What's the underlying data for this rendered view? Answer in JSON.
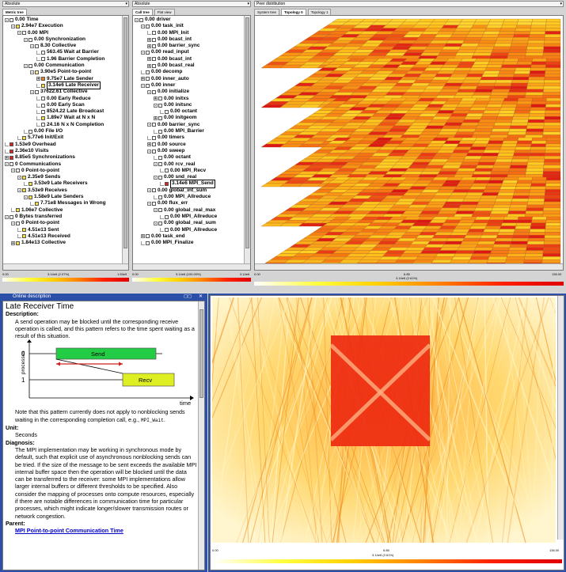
{
  "top": {
    "selectors": [
      "Absolute",
      "Absolute",
      "Peer distribution"
    ],
    "metric_tab": "Metric tree",
    "call_tabs": [
      "Call tree",
      "Flat view"
    ],
    "sys_tabs": [
      "System tree",
      "Topology 0",
      "Topology 1"
    ]
  },
  "metric_tree": [
    {
      "d": 0,
      "exp": "-",
      "c": "#ffffff",
      "t": "0.00 Time"
    },
    {
      "d": 1,
      "exp": "-",
      "c": "#f4e040",
      "t": "2.94e7 Execution"
    },
    {
      "d": 2,
      "exp": "-",
      "c": "#ffffff",
      "t": "0.00 MPI"
    },
    {
      "d": 3,
      "exp": "-",
      "c": "#ffffff",
      "t": "0.00 Synchronization"
    },
    {
      "d": 4,
      "exp": "-",
      "c": "#ffffff",
      "t": "8.30 Collective"
    },
    {
      "d": 5,
      "exp": "",
      "c": "#ffffff",
      "t": "563.45 Wait at Barrier"
    },
    {
      "d": 5,
      "exp": "",
      "c": "#ffffff",
      "t": "1.96 Barrier Completion"
    },
    {
      "d": 3,
      "exp": "-",
      "c": "#ffffff",
      "t": "0.00 Communication"
    },
    {
      "d": 4,
      "exp": "-",
      "c": "#f8f0a0",
      "t": "3.90e5 Point-to-point"
    },
    {
      "d": 5,
      "exp": "+",
      "c": "#f08020",
      "t": "9.75e7 Late Sender"
    },
    {
      "d": 5,
      "exp": "",
      "c": "#f4e040",
      "t": "3.14e6 Late Receiver",
      "boxed": true
    },
    {
      "d": 4,
      "exp": "-",
      "c": "#ffffff",
      "t": "37622.61 Collective"
    },
    {
      "d": 5,
      "exp": "",
      "c": "#ffffff",
      "t": "0.00 Early Reduce"
    },
    {
      "d": 5,
      "exp": "",
      "c": "#ffffff",
      "t": "0.00 Early Scan"
    },
    {
      "d": 5,
      "exp": "",
      "c": "#ffffff",
      "t": "8524.22 Late Broadcast"
    },
    {
      "d": 5,
      "exp": "",
      "c": "#f4e040",
      "t": "1.89e7 Wait at N x N"
    },
    {
      "d": 5,
      "exp": "",
      "c": "#ffffff",
      "t": "24.16 N x N Completion"
    },
    {
      "d": 3,
      "exp": "",
      "c": "#ffffff",
      "t": "0.00 File I/O"
    },
    {
      "d": 2,
      "exp": "",
      "c": "#f4e040",
      "t": "5.77e6 Init/Exit"
    },
    {
      "d": 0,
      "exp": "",
      "c": "#e02020",
      "t": "1.53e9 Overhead"
    },
    {
      "d": 0,
      "exp": "",
      "c": "#e02020",
      "t": "2.36e10 Visits"
    },
    {
      "d": 0,
      "exp": "+",
      "c": "#e02020",
      "t": "8.85e5 Synchronizations"
    },
    {
      "d": 0,
      "exp": "-",
      "c": "#ffffff",
      "t": "0 Communications"
    },
    {
      "d": 1,
      "exp": "-",
      "c": "#ffffff",
      "t": "0 Point-to-point"
    },
    {
      "d": 2,
      "exp": "-",
      "c": "#f4e040",
      "t": "2.35e9 Sends"
    },
    {
      "d": 3,
      "exp": "",
      "c": "#f4e040",
      "t": "3.53e9 Late Receivers"
    },
    {
      "d": 2,
      "exp": "-",
      "c": "#f4e040",
      "t": "3.53e9 Receives"
    },
    {
      "d": 3,
      "exp": "-",
      "c": "#f4e040",
      "t": "1.58e9 Late Senders"
    },
    {
      "d": 4,
      "exp": "",
      "c": "#f4e040",
      "t": "7.71e8 Messages in Wrong"
    },
    {
      "d": 1,
      "exp": "",
      "c": "#f4e040",
      "t": "1.06e7 Collective"
    },
    {
      "d": 0,
      "exp": "-",
      "c": "#ffffff",
      "t": "0 Bytes transferred"
    },
    {
      "d": 1,
      "exp": "-",
      "c": "#ffffff",
      "t": "0 Point-to-point"
    },
    {
      "d": 2,
      "exp": "",
      "c": "#f4e040",
      "t": "4.51e13 Sent"
    },
    {
      "d": 2,
      "exp": "",
      "c": "#f4e040",
      "t": "4.51e13 Received"
    },
    {
      "d": 1,
      "exp": "+",
      "c": "#f4e040",
      "t": "1.84e13 Collective"
    }
  ],
  "call_tree": [
    {
      "d": 0,
      "exp": "-",
      "c": "#ffffff",
      "t": "0.00 driver"
    },
    {
      "d": 1,
      "exp": "-",
      "c": "#ffffff",
      "t": "0.00 task_init"
    },
    {
      "d": 2,
      "exp": "",
      "c": "#ffffff",
      "t": "0.00 MPI_Init"
    },
    {
      "d": 2,
      "exp": "+",
      "c": "#ffffff",
      "t": "0.00 bcast_int"
    },
    {
      "d": 2,
      "exp": "+",
      "c": "#ffffff",
      "t": "0.00 barrier_sync"
    },
    {
      "d": 1,
      "exp": "-",
      "c": "#ffffff",
      "t": "0.00 read_input"
    },
    {
      "d": 2,
      "exp": "+",
      "c": "#ffffff",
      "t": "0.00 bcast_int"
    },
    {
      "d": 2,
      "exp": "+",
      "c": "#ffffff",
      "t": "0.00 bcast_real"
    },
    {
      "d": 1,
      "exp": "",
      "c": "#ffffff",
      "t": "0.00 decomp"
    },
    {
      "d": 1,
      "exp": "+",
      "c": "#ffffff",
      "t": "0.00 inner_auto"
    },
    {
      "d": 1,
      "exp": "-",
      "c": "#ffffff",
      "t": "0.00 inner"
    },
    {
      "d": 2,
      "exp": "-",
      "c": "#ffffff",
      "t": "0.00 initialize"
    },
    {
      "d": 3,
      "exp": "+",
      "c": "#ffffff",
      "t": "0.00 initxs"
    },
    {
      "d": 3,
      "exp": "-",
      "c": "#ffffff",
      "t": "0.00 initsnc"
    },
    {
      "d": 4,
      "exp": "",
      "c": "#ffffff",
      "t": "0.00 octant"
    },
    {
      "d": 3,
      "exp": "+",
      "c": "#ffffff",
      "t": "0.00 initgeom"
    },
    {
      "d": 2,
      "exp": "-",
      "c": "#ffffff",
      "t": "0.00 barrier_sync"
    },
    {
      "d": 3,
      "exp": "",
      "c": "#ffffff",
      "t": "0.00 MPI_Barrier"
    },
    {
      "d": 2,
      "exp": "",
      "c": "#ffffff",
      "t": "0.00 timers"
    },
    {
      "d": 2,
      "exp": "+",
      "c": "#ffffff",
      "t": "0.00 source"
    },
    {
      "d": 2,
      "exp": "-",
      "c": "#ffffff",
      "t": "0.00 sweep"
    },
    {
      "d": 3,
      "exp": "",
      "c": "#ffffff",
      "t": "0.00 octant"
    },
    {
      "d": 3,
      "exp": "-",
      "c": "#ffffff",
      "t": "0.00 rcv_real"
    },
    {
      "d": 4,
      "exp": "",
      "c": "#ffffff",
      "t": "0.00 MPI_Recv"
    },
    {
      "d": 3,
      "exp": "-",
      "c": "#ffffff",
      "t": "0.00 snd_real"
    },
    {
      "d": 4,
      "exp": "",
      "c": "#e02020",
      "t": "3.14e6 MPI_Send",
      "boxed": true
    },
    {
      "d": 2,
      "exp": "-",
      "c": "#ffffff",
      "t": "0.00 global_int_sum"
    },
    {
      "d": 3,
      "exp": "",
      "c": "#ffffff",
      "t": "0.00 MPI_Allreduce"
    },
    {
      "d": 2,
      "exp": "-",
      "c": "#ffffff",
      "t": "0.00 flux_err"
    },
    {
      "d": 3,
      "exp": "-",
      "c": "#ffffff",
      "t": "0.00 global_real_max"
    },
    {
      "d": 4,
      "exp": "",
      "c": "#ffffff",
      "t": "0.00 MPI_Allreduce"
    },
    {
      "d": 3,
      "exp": "-",
      "c": "#ffffff",
      "t": "0.00 global_real_sum"
    },
    {
      "d": 4,
      "exp": "",
      "c": "#ffffff",
      "t": "0.00 MPI_Allreduce"
    },
    {
      "d": 1,
      "exp": "+",
      "c": "#ffffff",
      "t": "0.00 task_end"
    },
    {
      "d": 1,
      "exp": "",
      "c": "#ffffff",
      "t": "0.00 MPI_Finalize"
    }
  ],
  "legends": {
    "left": {
      "min": "0.00",
      "mid": "3.14e6 (2.07%)",
      "max": "1.53e9"
    },
    "center": {
      "min": "0.00",
      "mid": "3.14e6 (100.00%)",
      "max": "3.14e6"
    },
    "right": {
      "min": "0.00",
      "mid": "6.85",
      "mid2": "3.14e6 (2.61%)",
      "max": "136.00"
    },
    "bottom": {
      "min": "0.00",
      "mid": "6.85",
      "mid2": "3.14e6 (2.61%)",
      "max": "136.00"
    }
  },
  "online": {
    "window_title": "Online description",
    "title": "Late Receiver Time",
    "desc_label": "Description:",
    "desc": "A send operation may be blocked until the corresponding receive operation is called, and this pattern refers to the time spent waiting as a result of this situation.",
    "diagram": {
      "send": "Send",
      "recv": "Recv",
      "p0": "0",
      "p1": "1",
      "ylabel": "processes",
      "xlabel": "time"
    },
    "note_1": "Note that this pattern currently does not apply to nonblocking sends waiting in the corresponding completion call, e.g.,",
    "note_code": "MPI_Wait",
    "note_end": ".",
    "unit_label": "Unit:",
    "unit": "Seconds",
    "diag_label": "Diagnosis:",
    "diag": "The MPI implementation may be working in synchronous mode by default, such that explicit use of asynchronous nonblocking sends can be tried. If the size of the message to be sent exceeds the available MPI internal buffer space then the operation will be blocked until the data can be transferred to the receiver: some MPI implementations allow larger internal buffers or different thresholds to be specified. Also consider the mapping of processes onto compute resources, especially if there are notable differences in communication time for particular processes, which might indicate longer/slower transmission routes or network congestion.",
    "parent_label": "Parent:",
    "parent_link": "MPI Point-to-point Communication Time"
  },
  "colors": {
    "accent": "#2040a0",
    "hot": "#e02020",
    "warm": "#f08020",
    "mild": "#f4e040"
  }
}
